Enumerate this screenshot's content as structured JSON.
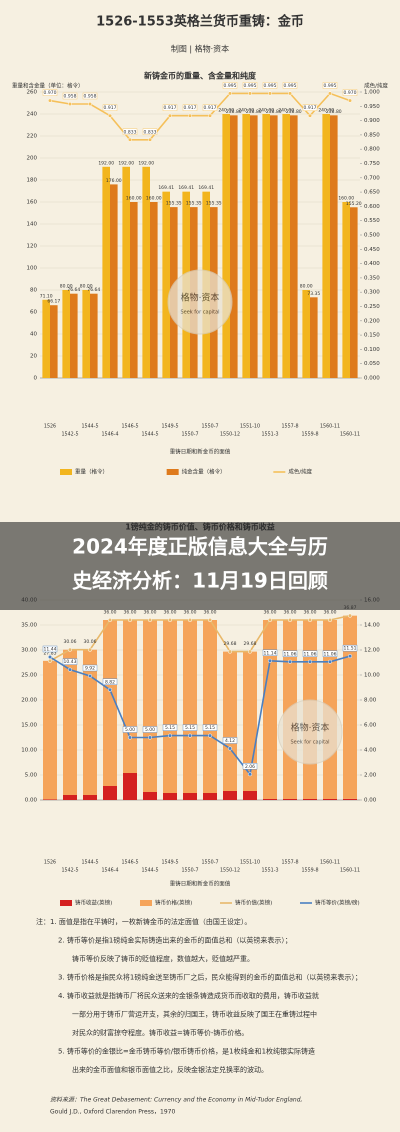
{
  "header": {
    "title": "1526-1553英格兰货币重铸：金币",
    "subtitle": "制图 | 格物·资本"
  },
  "overlay": {
    "lines": [
      "2024年度正版信息大全与历",
      "史经济分析：11月19日回顾"
    ]
  },
  "watermark": {
    "name": "格物·资本",
    "slogan": "Seek for capital"
  },
  "chart_data": [
    {
      "type": "combo",
      "title": "新铸金币的重量、含金量和纯度",
      "ylabel": "重量和含金量（单位：格令）",
      "y2label": "成色/纯度",
      "xlabel": "重铸日期和新金币的面值",
      "categories": [
        "1526",
        "1542-5",
        "1544-5",
        "1546-4",
        "1546-5",
        "1544-5",
        "1549-5",
        "1550-7",
        "1550-7",
        "1550-12",
        "1551-10",
        "1551-3",
        "1557-8",
        "1559-8",
        "1560-11",
        "1560-11"
      ],
      "ylim": [
        0,
        260
      ],
      "yticks": [
        0,
        20,
        40,
        60,
        80,
        100,
        120,
        140,
        160,
        180,
        200,
        220,
        240,
        260
      ],
      "y2lim": [
        0,
        1
      ],
      "y2ticks": [
        {
          "value": 0,
          "label": "0.000"
        },
        {
          "value": 0.05,
          "label": "0.050"
        },
        {
          "value": 0.1,
          "label": "0.100"
        },
        {
          "value": 0.15,
          "label": "0.150"
        },
        {
          "value": 0.2,
          "label": "0.200"
        },
        {
          "value": 0.25,
          "label": "0.250"
        },
        {
          "value": 0.3,
          "label": "0.300"
        },
        {
          "value": 0.35,
          "label": "0.350"
        },
        {
          "value": 0.4,
          "label": "0.400"
        },
        {
          "value": 0.45,
          "label": "0.450"
        },
        {
          "value": 0.5,
          "label": "0.500"
        },
        {
          "value": 0.55,
          "label": "0.550"
        },
        {
          "value": 0.6,
          "label": "0.600"
        },
        {
          "value": 0.65,
          "label": "0.650"
        },
        {
          "value": 0.7,
          "label": "0.700"
        },
        {
          "value": 0.75,
          "label": "0.750"
        },
        {
          "value": 0.8,
          "label": "0.800"
        },
        {
          "value": 0.85,
          "label": "0.850"
        },
        {
          "value": 0.9,
          "label": "0.900"
        },
        {
          "value": 0.95,
          "label": "0.950"
        },
        {
          "value": 1,
          "label": "1.000"
        }
      ],
      "grid": true,
      "stacked": false,
      "series": [
        {
          "name": "重量（格令）",
          "kind": "bar",
          "color": "#f2b51e",
          "values": [
            71.1,
            80,
            80,
            192,
            192,
            192,
            169.41,
            169.41,
            169.41,
            240,
            240,
            240,
            240,
            80,
            240,
            160
          ],
          "value_labels": [
            "71.10",
            "80.00",
            "80.00",
            "192.00",
            "192.00",
            "192.00",
            "169.41",
            "169.41",
            "169.41",
            "240.00",
            "240.00",
            "240.00",
            "240.00",
            "80.00",
            "240.00",
            "160.00"
          ]
        },
        {
          "name": "纯金含量（格令）",
          "kind": "bar",
          "color": "#de7a1c",
          "values": [
            66.17,
            76.64,
            76.64,
            176,
            160,
            160,
            155.35,
            155.35,
            155.35,
            238.8,
            238.8,
            238.8,
            238.8,
            73.35,
            238.8,
            155.2
          ],
          "value_labels": [
            "66.17",
            "76.64",
            "76.64",
            "176.00",
            "160.00",
            "160.00",
            "155.35",
            "155.35",
            "155.35",
            "238.80",
            "238.80",
            "238.80",
            "238.80",
            "73.35",
            "238.80",
            "155.20"
          ]
        },
        {
          "name": "成色/纯度",
          "kind": "line",
          "axis": "y2",
          "color": "#f5c05a",
          "values": [
            0.97,
            0.958,
            0.958,
            0.917,
            0.833,
            0.833,
            0.917,
            0.917,
            0.917,
            0.995,
            0.995,
            0.995,
            0.995,
            0.917,
            0.995,
            0.97
          ],
          "value_labels": [
            "0.970",
            "0.958",
            "0.958",
            "0.917",
            "0.833",
            "0.833",
            "0.917",
            "0.917",
            "0.917",
            "0.995",
            "0.995",
            "0.995",
            "0.995",
            "0.917",
            "0.995",
            "0.970"
          ]
        }
      ]
    },
    {
      "type": "combo",
      "title": "1镑纯金的铸币价值、铸币价格和铸币收益",
      "xlabel": "重铸日期和新金币的面值",
      "categories": [
        "1526",
        "1542-5",
        "1544-5",
        "1546-4",
        "1546-5",
        "1544-5",
        "1549-5",
        "1550-7",
        "1550-7",
        "1550-12",
        "1551-10",
        "1551-3",
        "1557-8",
        "1559-8",
        "1560-11",
        "1560-11"
      ],
      "ylim": [
        0,
        40
      ],
      "yticks": [
        {
          "value": 0,
          "label": "0.00"
        },
        {
          "value": 5,
          "label": "5.00"
        },
        {
          "value": 10,
          "label": "10.00"
        },
        {
          "value": 15,
          "label": "15.00"
        },
        {
          "value": 20,
          "label": "20.00"
        },
        {
          "value": 25,
          "label": "25.00"
        },
        {
          "value": 30,
          "label": "30.00"
        },
        {
          "value": 35,
          "label": "35.00"
        },
        {
          "value": 40,
          "label": "40.00"
        }
      ],
      "y2lim": [
        0,
        16
      ],
      "y2ticks": [
        {
          "value": 0,
          "label": "0.00"
        },
        {
          "value": 2,
          "label": "2.00"
        },
        {
          "value": 4,
          "label": "4.00"
        },
        {
          "value": 6,
          "label": "6.00"
        },
        {
          "value": 8,
          "label": "8.00"
        },
        {
          "value": 10,
          "label": "10.00"
        },
        {
          "value": 12,
          "label": "12.00"
        },
        {
          "value": 14,
          "label": "14.00"
        },
        {
          "value": 16,
          "label": "16.00"
        }
      ],
      "grid": true,
      "stacked": true,
      "series": [
        {
          "name": "铸币收益(英镑)",
          "kind": "bar",
          "color": "#d42020",
          "values": [
            0.14,
            1,
            1,
            2.8,
            5.4,
            1.6,
            1.4,
            1.4,
            1.4,
            1.8,
            1.8,
            0.2,
            0.2,
            0.2,
            0.2,
            0.22
          ]
        },
        {
          "name": "铸币价格(英镑)",
          "kind": "bar",
          "color": "#f5a45a",
          "values": [
            27.69,
            29.06,
            29.06,
            33.2,
            30.6,
            34.4,
            34.6,
            34.6,
            34.6,
            27.88,
            27.88,
            35.8,
            35.8,
            35.8,
            35.8,
            36.65
          ]
        },
        {
          "name": "铸币价值(英镑)",
          "kind": "line",
          "color": "#e8b86a",
          "values": [
            27.83,
            30.06,
            30.06,
            36,
            36,
            36,
            36,
            36,
            36,
            29.68,
            29.68,
            36,
            36,
            36,
            36,
            36.87
          ],
          "value_labels": [
            "27.83",
            "30.06",
            "30.06",
            "36.00",
            "36.00",
            "36.00",
            "36.00",
            "36.00",
            "36.00",
            "29.68",
            "29.68",
            "36.00",
            "36.00",
            "36.00",
            "36.00",
            "36.87"
          ]
        },
        {
          "name": "铸币等价(英镑/磅)",
          "kind": "line",
          "axis": "y2",
          "color": "#4a7fc1",
          "values": [
            11.44,
            10.43,
            9.92,
            8.82,
            5,
            5,
            5.15,
            5.15,
            5.15,
            4.12,
            2.06,
            11.14,
            11.06,
            11.06,
            11.06,
            11.51
          ],
          "value_labels": [
            "11.44",
            "10.43",
            "9.92",
            "8.82",
            "5.00",
            "5.00",
            "5.15",
            "5.15",
            "5.15",
            "4.12",
            "2.06",
            "11.14",
            "11.06",
            "11.06",
            "11.06",
            "11.51"
          ]
        }
      ]
    }
  ],
  "notes": [
    "注：1. 面值是指在平铸时，一枚新铸金币的法定面值（由国王设定）。",
    "2. 铸币等价是指1磅纯金实际铸造出来的金币的面值总和（以英镑来表示）；",
    "铸币等价反映了铸币的贬值程度，数值越大，贬值越严重。",
    "3. 铸币价格是指民众将1磅纯金送至铸币厂之后，民众能得到的金币的面值总和（以英镑来表示）；",
    "4. 铸币收益就是指铸币厂将民众送来的金银条铸造成货币而收取的费用，铸币收益就",
    "一部分用于铸币厂营运开支，其余的归国王，铸币收益反映了国王在重铸过程中",
    "对民众的财富掠夺程度。铸币收益=铸币等价-铸币价格。",
    "5. 铸币等价的金银比=金币铸币等价/银币铸币价格，是1枚纯金和1枚纯银实际铸造",
    "出来的金币面值和银币面值之比，反映金银法定兑换率的波动。"
  ],
  "source": [
    "资料来源：The Great Debasement: Currency and the Economy in Mid-Tudor England,",
    "Gould J.D., Oxford Clarendon Press，1970"
  ]
}
